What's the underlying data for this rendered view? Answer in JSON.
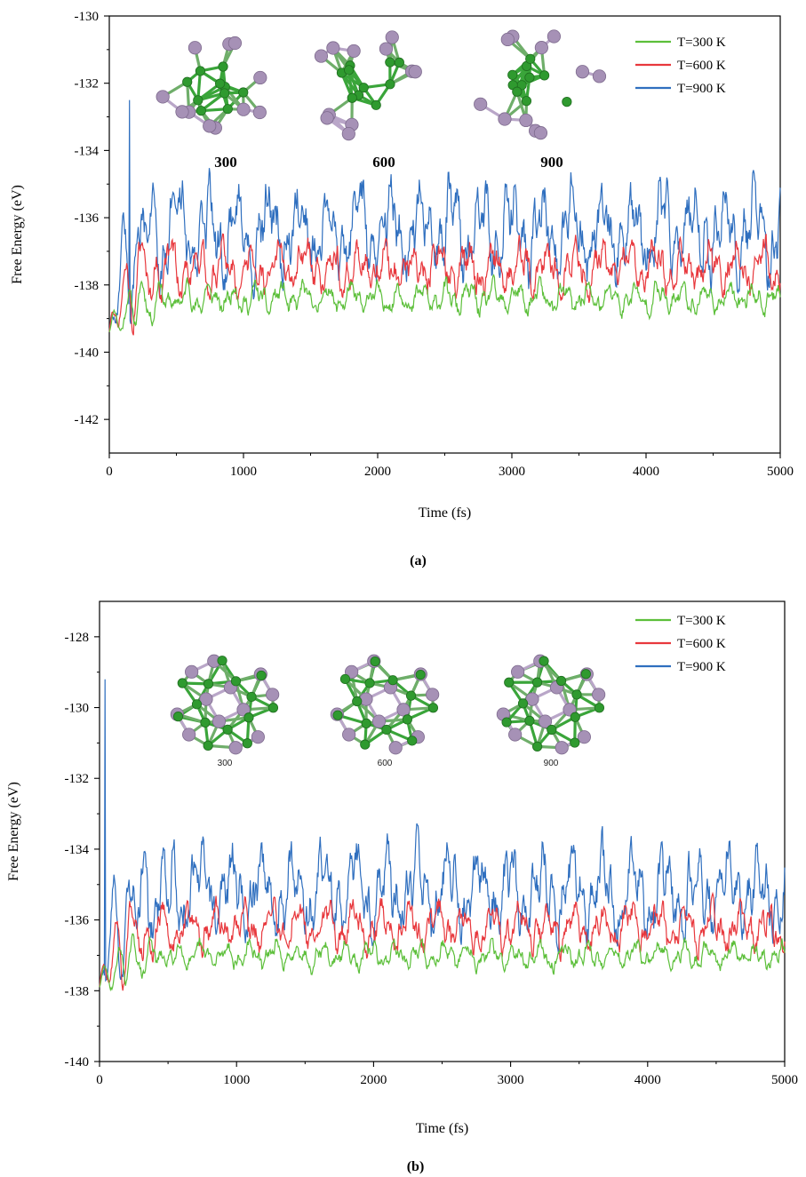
{
  "chart_data": [
    {
      "id": "a",
      "type": "line",
      "panel_label": "(a)",
      "xlabel": "Time (fs)",
      "ylabel": "Free Energy (eV)",
      "xlim": [
        0,
        5000
      ],
      "ylim": [
        -143,
        -130
      ],
      "xticks": [
        0,
        1000,
        2000,
        3000,
        4000,
        5000
      ],
      "yticks": [
        -142,
        -140,
        -138,
        -136,
        -134,
        -132,
        -130
      ],
      "legend_position": "top-right",
      "series": [
        {
          "name": "T=300 K",
          "color": "#5cbf3a",
          "equilibrium_mean": -138.4,
          "fluctuation_amplitude": 0.3,
          "initial_value": -139.4
        },
        {
          "name": "T=600 K",
          "color": "#e8383d",
          "equilibrium_mean": -137.5,
          "fluctuation_amplitude": 0.5,
          "initial_value": -139.4
        },
        {
          "name": "T=900 K",
          "color": "#2f6fbf",
          "equilibrium_mean": -136.4,
          "fluctuation_amplitude": 0.9,
          "initial_value": -139.4,
          "peak": {
            "x": 150,
            "y": -132.5
          }
        }
      ],
      "insets": [
        {
          "label": "300",
          "icon": "boron-cluster-irregular"
        },
        {
          "label": "600",
          "icon": "boron-cluster-irregular"
        },
        {
          "label": "900",
          "icon": "boron-cluster-irregular"
        }
      ]
    },
    {
      "id": "b",
      "type": "line",
      "panel_label": "(b)",
      "xlabel": "Time (fs)",
      "ylabel": "Free Energy (eV)",
      "xlim": [
        0,
        5000
      ],
      "ylim": [
        -140,
        -127
      ],
      "xticks": [
        0,
        1000,
        2000,
        3000,
        4000,
        5000
      ],
      "yticks": [
        -140,
        -138,
        -136,
        -134,
        -132,
        -130,
        -128
      ],
      "legend_position": "top-right",
      "series": [
        {
          "name": "T=300 K",
          "color": "#5cbf3a",
          "equilibrium_mean": -137.0,
          "fluctuation_amplitude": 0.25,
          "initial_value": -137.9
        },
        {
          "name": "T=600 K",
          "color": "#e8383d",
          "equilibrium_mean": -136.2,
          "fluctuation_amplitude": 0.45,
          "initial_value": -137.9
        },
        {
          "name": "T=900 K",
          "color": "#2f6fbf",
          "equilibrium_mean": -135.2,
          "fluctuation_amplitude": 0.8,
          "initial_value": -137.9,
          "peak": {
            "x": 40,
            "y": -129.2
          }
        }
      ],
      "insets": [
        {
          "label": "300",
          "icon": "boron-cage-symmetric"
        },
        {
          "label": "600",
          "icon": "boron-cage-symmetric"
        },
        {
          "label": "900",
          "icon": "boron-cage-symmetric"
        }
      ]
    }
  ],
  "colors": {
    "green_atom": "#2f9a2f",
    "purple_atom": "#a691b6",
    "bond_green": "#3aa53a",
    "bond_purple": "#b9a6c8"
  }
}
